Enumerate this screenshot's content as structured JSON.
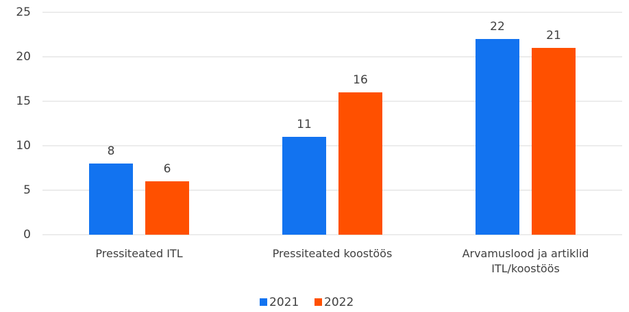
{
  "chart_data": {
    "type": "bar",
    "categories": [
      "Pressiteated ITL",
      "Pressiteated koostöös",
      "Arvamuslood ja artiklid ITL/koostöös"
    ],
    "series": [
      {
        "name": "2021",
        "color": "#1273f0",
        "values": [
          8,
          11,
          22
        ]
      },
      {
        "name": "2022",
        "color": "#ff5000",
        "values": [
          6,
          16,
          21
        ]
      }
    ],
    "ylim": [
      0,
      25
    ],
    "yticks": [
      0,
      5,
      10,
      15,
      20,
      25
    ],
    "grid": true,
    "legend": "bottom"
  }
}
